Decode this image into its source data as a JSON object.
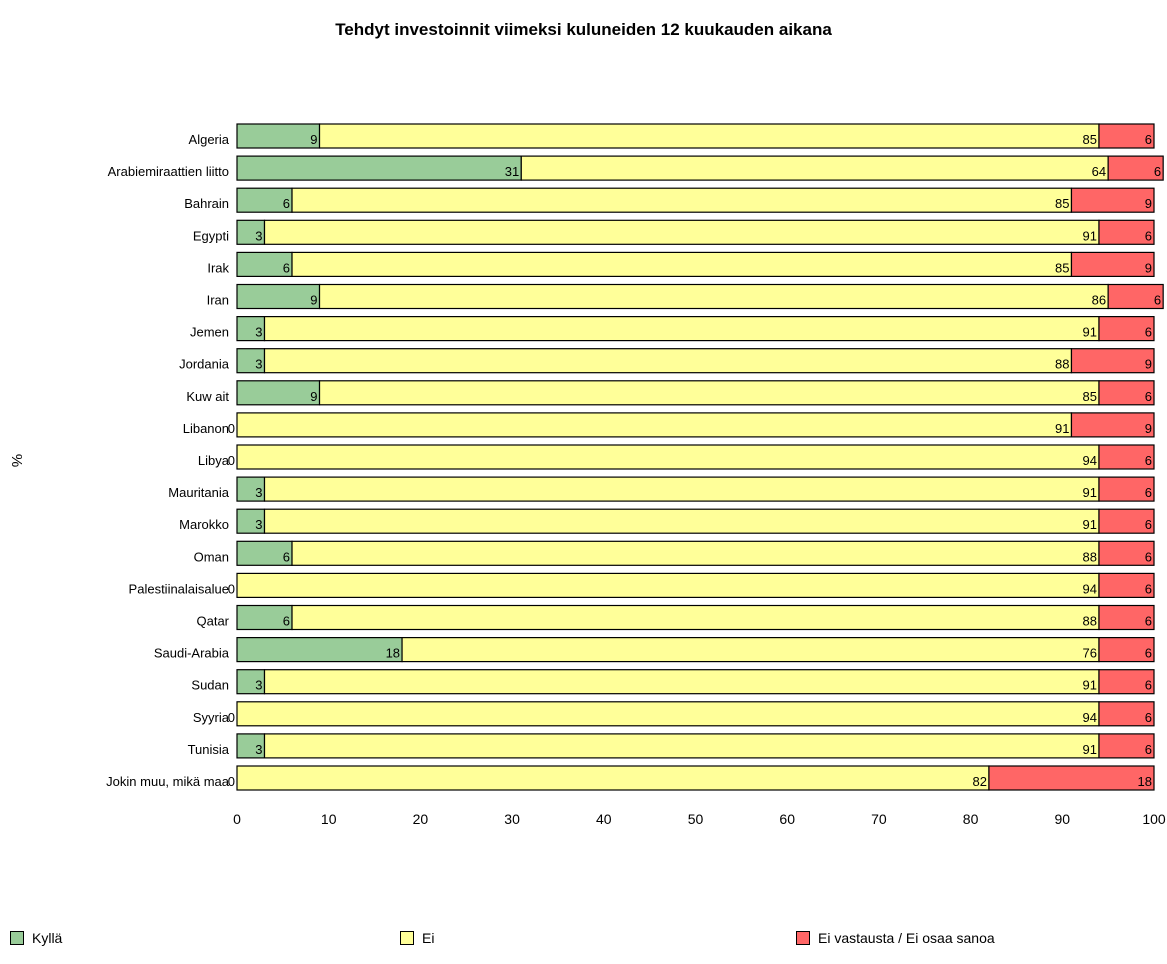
{
  "chart_data": {
    "type": "bar",
    "orientation": "horizontal",
    "stacked": true,
    "title": "Tehdyt investoinnit viimeksi kuluneiden 12 kuukauden aikana",
    "ylabel": "%",
    "xlim": [
      0,
      100
    ],
    "x_ticks": [
      "0",
      "10",
      "20",
      "30",
      "40",
      "50",
      "60",
      "70",
      "80",
      "90",
      "100"
    ],
    "grid": false,
    "legend_position": "bottom",
    "categories": [
      "Algeria",
      "Arabiemiraattien liitto",
      "Bahrain",
      "Egypti",
      "Irak",
      "Iran",
      "Jemen",
      "Jordania",
      "Kuw ait",
      "Libanon",
      "Libya",
      "Mauritania",
      "Marokko",
      "Oman",
      "Palestiinalaisalue",
      "Qatar",
      "Saudi-Arabia",
      "Sudan",
      "Syyria",
      "Tunisia",
      "Jokin muu, mikä maa"
    ],
    "series": [
      {
        "name": "Kyllä",
        "color": "#99CC99",
        "values": [
          9,
          31,
          6,
          3,
          6,
          9,
          3,
          3,
          9,
          0,
          0,
          3,
          3,
          6,
          0,
          6,
          18,
          3,
          0,
          3,
          0
        ]
      },
      {
        "name": "Ei",
        "color": "#FFFF99",
        "values": [
          85,
          64,
          85,
          91,
          85,
          86,
          91,
          88,
          85,
          91,
          94,
          91,
          91,
          88,
          94,
          88,
          76,
          91,
          94,
          91,
          82
        ]
      },
      {
        "name": "Ei vastausta / Ei osaa sanoa",
        "color": "#FF6666",
        "values": [
          6,
          6,
          9,
          6,
          9,
          6,
          6,
          9,
          6,
          9,
          6,
          6,
          6,
          6,
          6,
          6,
          6,
          6,
          6,
          6,
          18
        ]
      }
    ]
  }
}
